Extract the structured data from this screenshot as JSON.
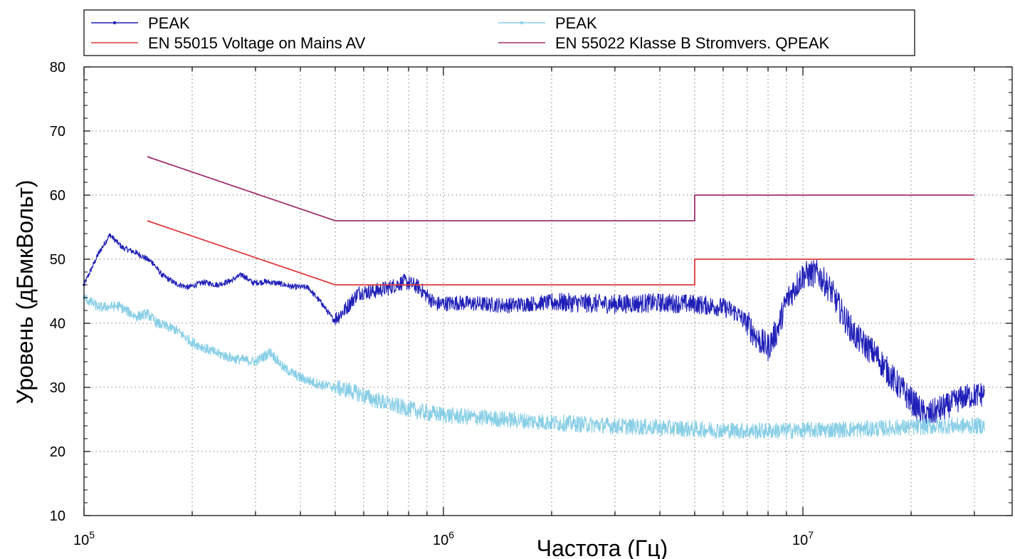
{
  "chart_data": {
    "type": "line",
    "x_scale": "log",
    "xlabel": "Частота (Гц)",
    "ylabel": "Уровень (дБмкВольт)",
    "xlim": [
      100000,
      35000000
    ],
    "ylim": [
      10,
      80
    ],
    "grid": true,
    "legend_position": "top",
    "y_ticks": [
      "10",
      "20",
      "30",
      "40",
      "50",
      "60",
      "70",
      "80"
    ],
    "x_ticks": [
      {
        "value": 100000,
        "base": "10",
        "exp": "5"
      },
      {
        "value": 1000000,
        "base": "10",
        "exp": "6"
      },
      {
        "value": 10000000,
        "base": "10",
        "exp": "7"
      }
    ],
    "series": [
      {
        "name": "PEAK",
        "color": "#1f1fb8",
        "marker": "dot",
        "points": [
          [
            100000,
            46
          ],
          [
            110000,
            51
          ],
          [
            118000,
            53.8
          ],
          [
            128000,
            51.8
          ],
          [
            140000,
            51
          ],
          [
            155000,
            49.5
          ],
          [
            165000,
            47.5
          ],
          [
            180000,
            46.2
          ],
          [
            195000,
            45.6
          ],
          [
            215000,
            46.4
          ],
          [
            235000,
            46
          ],
          [
            255000,
            46.6
          ],
          [
            275000,
            47.6
          ],
          [
            295000,
            46.3
          ],
          [
            320000,
            46.5
          ],
          [
            350000,
            46.2
          ],
          [
            380000,
            45.7
          ],
          [
            420000,
            45.6
          ],
          [
            460000,
            43
          ],
          [
            495000,
            40.5
          ],
          [
            530000,
            42
          ],
          [
            580000,
            44.8
          ],
          [
            640000,
            45
          ],
          [
            700000,
            45.5
          ],
          [
            780000,
            46.5
          ],
          [
            850000,
            45.7
          ],
          [
            950000,
            43
          ],
          [
            1100000,
            43.2
          ],
          [
            1500000,
            42.8
          ],
          [
            2000000,
            43.3
          ],
          [
            3000000,
            43
          ],
          [
            4000000,
            43.2
          ],
          [
            5000000,
            43
          ],
          [
            6000000,
            42.5
          ],
          [
            6500000,
            41.7
          ],
          [
            7000000,
            40
          ],
          [
            7500000,
            37.5
          ],
          [
            8000000,
            36.2
          ],
          [
            8500000,
            39
          ],
          [
            9000000,
            43.5
          ],
          [
            10000000,
            47.5
          ],
          [
            11000000,
            47.8
          ],
          [
            12000000,
            45
          ],
          [
            13000000,
            41
          ],
          [
            14000000,
            38
          ],
          [
            16000000,
            35
          ],
          [
            18000000,
            31
          ],
          [
            20000000,
            28
          ],
          [
            22000000,
            25.5
          ],
          [
            25000000,
            27
          ],
          [
            28000000,
            28.5
          ],
          [
            32000000,
            29
          ]
        ]
      },
      {
        "name": "PEAK",
        "color": "#87cee6",
        "marker": "dot",
        "points": [
          [
            100000,
            44
          ],
          [
            110000,
            42.5
          ],
          [
            125000,
            42.7
          ],
          [
            140000,
            41
          ],
          [
            150000,
            41.5
          ],
          [
            160000,
            40
          ],
          [
            180000,
            39
          ],
          [
            200000,
            37
          ],
          [
            230000,
            35.5
          ],
          [
            260000,
            34.5
          ],
          [
            300000,
            34
          ],
          [
            330000,
            35.5
          ],
          [
            360000,
            33
          ],
          [
            400000,
            31.5
          ],
          [
            450000,
            30.5
          ],
          [
            500000,
            30
          ],
          [
            550000,
            29.5
          ],
          [
            650000,
            28
          ],
          [
            750000,
            27
          ],
          [
            900000,
            26
          ],
          [
            1100000,
            25.5
          ],
          [
            1500000,
            25
          ],
          [
            2000000,
            24.5
          ],
          [
            3000000,
            24
          ],
          [
            5000000,
            23.5
          ],
          [
            7000000,
            23.2
          ],
          [
            10000000,
            23.3
          ],
          [
            15000000,
            23.5
          ],
          [
            20000000,
            23.8
          ],
          [
            25000000,
            24
          ],
          [
            32000000,
            24
          ]
        ]
      },
      {
        "name": "EN 55015 Voltage on Mains AV",
        "color": "#e03a3a",
        "marker": "none",
        "points": [
          [
            150000,
            56
          ],
          [
            500000,
            46
          ],
          [
            5000000,
            46
          ],
          [
            5000000,
            50
          ],
          [
            30000000,
            50
          ]
        ]
      },
      {
        "name": "EN 55022 Klasse B Stromvers. QPEAK",
        "color": "#a0306e",
        "marker": "none",
        "points": [
          [
            150000,
            66
          ],
          [
            500000,
            56
          ],
          [
            5000000,
            56
          ],
          [
            5000000,
            60
          ],
          [
            30000000,
            60
          ]
        ]
      }
    ]
  },
  "legend": [
    {
      "label": "PEAK",
      "color": "#1f1fb8",
      "marker": "dot"
    },
    {
      "label": "PEAK",
      "color": "#87cee6",
      "marker": "dot"
    },
    {
      "label": "EN 55015 Voltage on Mains AV",
      "color": "#e03a3a",
      "marker": "none"
    },
    {
      "label": "EN 55022 Klasse B Stromvers. QPEAK",
      "color": "#a0306e",
      "marker": "none"
    }
  ]
}
